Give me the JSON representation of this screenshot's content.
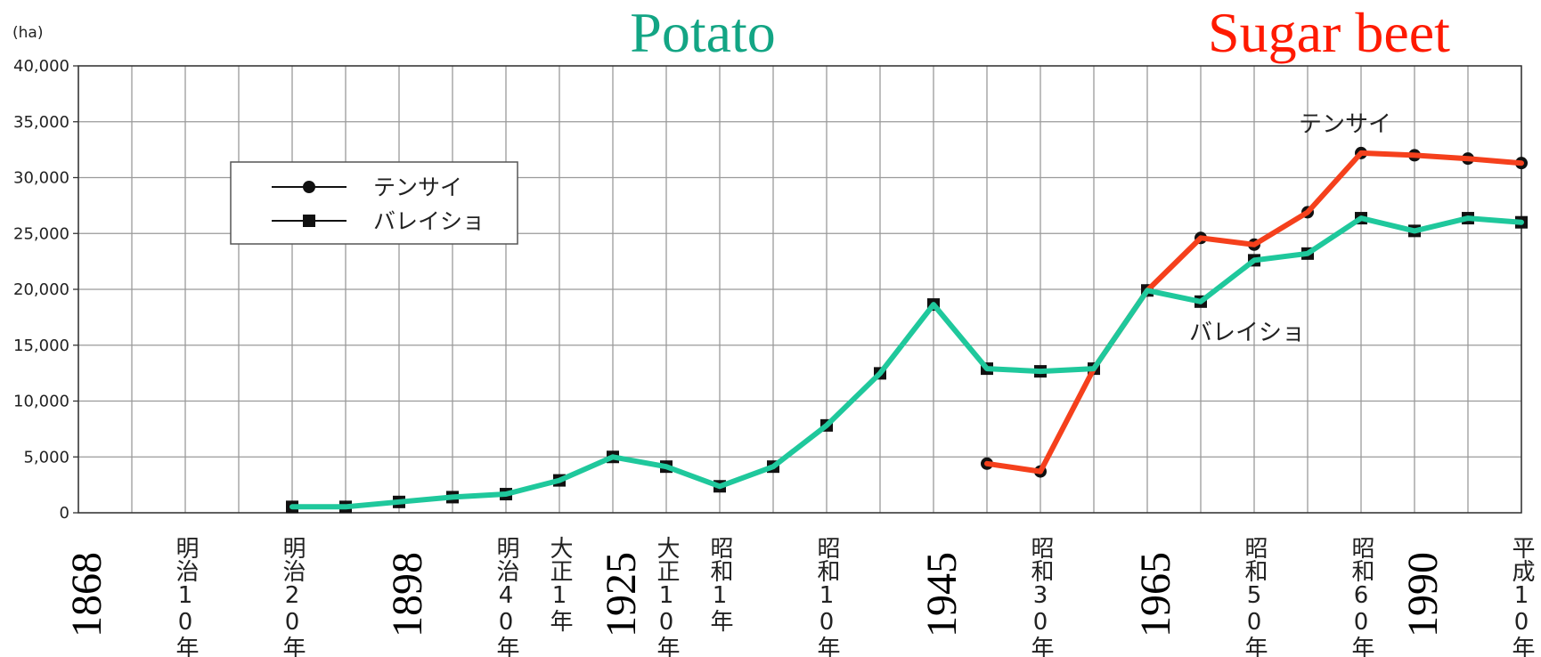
{
  "chart_data": {
    "type": "line",
    "title": "Potato",
    "subtitle": "Sugar beet",
    "title_color": "#13a584",
    "subtitle_color": "#ff1a00",
    "y_label": "(ha)",
    "ylim": [
      0,
      40000
    ],
    "yticks": [
      0,
      {
        "value": 5000,
        "label": "5,000"
      },
      {
        "value": 10000,
        "label": "10,000"
      },
      {
        "value": 15000,
        "label": "15,000"
      },
      {
        "value": 20000,
        "label": "20,000"
      },
      {
        "value": 25000,
        "label": "25,000"
      },
      {
        "value": 30000,
        "label": "30,000"
      },
      {
        "value": 35000,
        "label": "35,000"
      },
      {
        "value": 40000,
        "label": "40,000"
      }
    ],
    "grid": true,
    "categories": [
      null,
      null,
      "明治10年",
      null,
      "明治20年",
      null,
      null,
      null,
      "明治40年",
      "大正1年",
      null,
      "大正10年",
      "昭和1年",
      null,
      "昭和10年",
      null,
      null,
      null,
      "昭和30年",
      null,
      null,
      null,
      "昭和50年",
      null,
      "昭和60年",
      null,
      null,
      "平成10年"
    ],
    "western_years": [
      "1868",
      null,
      null,
      null,
      null,
      null,
      "1898",
      null,
      null,
      null,
      "1925",
      null,
      null,
      null,
      null,
      null,
      "1945",
      null,
      null,
      null,
      "1965",
      null,
      null,
      null,
      null,
      "1990",
      null,
      null
    ],
    "series": [
      {
        "name": "テンサイ",
        "color": "#f5401c",
        "marker": "circle",
        "values": [
          null,
          null,
          null,
          null,
          null,
          null,
          null,
          null,
          null,
          null,
          null,
          null,
          null,
          null,
          null,
          null,
          null,
          4400,
          3700,
          12900,
          19900,
          24600,
          24000,
          26900,
          32200,
          32000,
          31700,
          31300
        ]
      },
      {
        "name": "バレイショ",
        "color": "#1fc89c",
        "marker": "square",
        "values": [
          null,
          null,
          null,
          null,
          530,
          530,
          970,
          1400,
          1670,
          2900,
          5000,
          4130,
          2370,
          4130,
          7820,
          12480,
          18640,
          12900,
          12660,
          12900,
          19900,
          18900,
          22600,
          23200,
          26370,
          25230,
          26370,
          26000
        ]
      }
    ],
    "annotations": [
      "テンサイ",
      "バレイショ"
    ],
    "legend": "upper-left"
  }
}
